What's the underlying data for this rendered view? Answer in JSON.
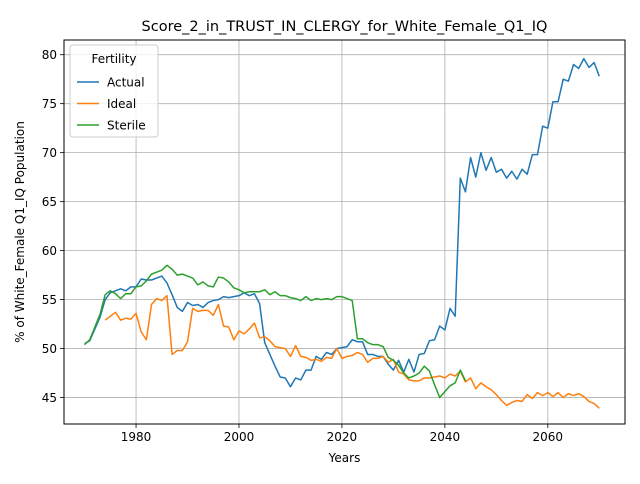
{
  "chart_data": {
    "type": "line",
    "title": "Score_2_in_TRUST_IN_CLERGY_for_White_Female_Q1_IQ",
    "xlabel": "Years",
    "ylabel": "% of White_Female Q1_IQ Population",
    "xlim": [
      1966,
      2075
    ],
    "ylim": [
      42.3,
      81.5
    ],
    "xticks": [
      1980,
      2000,
      2020,
      2040,
      2060
    ],
    "yticks": [
      45,
      50,
      55,
      60,
      65,
      70,
      75,
      80
    ],
    "grid": true,
    "legend": {
      "title": "Fertility",
      "placement": "top-left"
    },
    "series": [
      {
        "name": "Actual",
        "color": "#1f77b4",
        "x": [
          1970,
          1971,
          1972,
          1973,
          1974,
          1975,
          1976,
          1977,
          1978,
          1979,
          1980,
          1981,
          1982,
          1983,
          1984,
          1985,
          1986,
          1987,
          1988,
          1989,
          1990,
          1991,
          1992,
          1993,
          1994,
          1995,
          1996,
          1997,
          1998,
          1999,
          2000,
          2001,
          2002,
          2003,
          2004,
          2005,
          2006,
          2007,
          2008,
          2009,
          2010,
          2011,
          2012,
          2013,
          2014,
          2015,
          2016,
          2017,
          2018,
          2019,
          2020,
          2021,
          2022,
          2023,
          2024,
          2025,
          2026,
          2027,
          2028,
          2029,
          2030,
          2031,
          2032,
          2033,
          2034,
          2035,
          2036,
          2037,
          2038,
          2039,
          2040,
          2041,
          2042,
          2043,
          2044,
          2045,
          2046,
          2047,
          2048,
          2049,
          2050,
          2051,
          2052,
          2053,
          2054,
          2055,
          2056,
          2057,
          2058,
          2059,
          2060,
          2061,
          2062,
          2063,
          2064,
          2065,
          2066,
          2067,
          2068,
          2069,
          2070
        ],
        "y": [
          50.5,
          50.8,
          52.0,
          53.2,
          55.0,
          55.7,
          55.9,
          56.1,
          55.9,
          56.3,
          56.3,
          57.1,
          57.0,
          57.0,
          57.2,
          57.4,
          56.7,
          55.5,
          54.2,
          53.8,
          54.7,
          54.4,
          54.5,
          54.2,
          54.7,
          54.9,
          55.0,
          55.3,
          55.2,
          55.3,
          55.4,
          55.7,
          55.4,
          55.6,
          54.6,
          50.6,
          49.4,
          48.2,
          47.1,
          47.0,
          46.1,
          47.0,
          46.8,
          47.8,
          47.8,
          49.2,
          48.9,
          49.6,
          49.4,
          50.0,
          50.1,
          50.2,
          50.9,
          50.7,
          50.7,
          49.4,
          49.4,
          49.2,
          49.2,
          48.4,
          47.8,
          48.8,
          47.6,
          48.9,
          47.6,
          49.4,
          49.5,
          50.8,
          50.9,
          52.3,
          51.9,
          54.1,
          53.3,
          67.4,
          66.0,
          69.5,
          67.5,
          70.0,
          68.2,
          69.5,
          68.0,
          68.3,
          67.4,
          68.1,
          67.3,
          68.3,
          67.8,
          69.8,
          69.8,
          72.7,
          72.5,
          75.2,
          75.2,
          77.5,
          77.3,
          79.0,
          78.6,
          79.6,
          78.7,
          79.2,
          77.8
        ]
      },
      {
        "name": "Ideal",
        "color": "#ff7f0e",
        "x": [
          1974,
          1975,
          1976,
          1977,
          1978,
          1979,
          1980,
          1981,
          1982,
          1983,
          1984,
          1985,
          1986,
          1987,
          1988,
          1989,
          1990,
          1991,
          1992,
          1993,
          1994,
          1995,
          1996,
          1997,
          1998,
          1999,
          2000,
          2001,
          2002,
          2003,
          2004,
          2005,
          2006,
          2007,
          2008,
          2009,
          2010,
          2011,
          2012,
          2013,
          2014,
          2015,
          2016,
          2017,
          2018,
          2019,
          2020,
          2021,
          2022,
          2023,
          2024,
          2025,
          2026,
          2027,
          2028,
          2029,
          2030,
          2031,
          2032,
          2033,
          2034,
          2035,
          2036,
          2037,
          2038,
          2039,
          2040,
          2041,
          2042,
          2043,
          2044,
          2045,
          2046,
          2047,
          2048,
          2049,
          2050,
          2051,
          2052,
          2053,
          2054,
          2055,
          2056,
          2057,
          2058,
          2059,
          2060,
          2061,
          2062,
          2063,
          2064,
          2065,
          2066,
          2067,
          2068,
          2069,
          2070
        ],
        "y": [
          52.9,
          53.3,
          53.7,
          52.9,
          53.1,
          53.0,
          53.6,
          51.7,
          50.9,
          54.5,
          55.1,
          54.9,
          55.4,
          49.4,
          49.8,
          49.8,
          50.7,
          54.1,
          53.8,
          53.9,
          53.9,
          53.4,
          54.5,
          52.3,
          52.2,
          50.9,
          51.8,
          51.5,
          52.0,
          52.6,
          51.1,
          51.2,
          50.8,
          50.2,
          50.1,
          50.0,
          49.2,
          50.3,
          49.2,
          49.1,
          48.8,
          48.9,
          48.7,
          49.1,
          49.0,
          50.0,
          49.0,
          49.2,
          49.3,
          49.6,
          49.4,
          48.6,
          49.0,
          49.0,
          49.2,
          48.6,
          48.9,
          47.6,
          47.4,
          46.8,
          46.7,
          46.7,
          47.0,
          47.0,
          47.1,
          47.2,
          47.0,
          47.4,
          47.2,
          47.7,
          46.6,
          47.0,
          45.9,
          46.5,
          46.1,
          45.8,
          45.3,
          44.7,
          44.2,
          44.5,
          44.7,
          44.6,
          45.3,
          44.9,
          45.5,
          45.2,
          45.5,
          45.1,
          45.5,
          45.0,
          45.4,
          45.2,
          45.4,
          45.1,
          44.6,
          44.4,
          43.9
        ]
      },
      {
        "name": "Sterile",
        "color": "#2ca02c",
        "x": [
          1970,
          1971,
          1972,
          1973,
          1974,
          1975,
          1976,
          1977,
          1978,
          1979,
          1980,
          1981,
          1982,
          1983,
          1984,
          1985,
          1986,
          1987,
          1988,
          1989,
          1990,
          1991,
          1992,
          1993,
          1994,
          1995,
          1996,
          1997,
          1998,
          1999,
          2000,
          2001,
          2002,
          2003,
          2004,
          2005,
          2006,
          2007,
          2008,
          2009,
          2010,
          2011,
          2012,
          2013,
          2014,
          2015,
          2016,
          2017,
          2018,
          2019,
          2020,
          2021,
          2022,
          2023,
          2024,
          2025,
          2026,
          2027,
          2028,
          2029,
          2030,
          2031,
          2032,
          2033,
          2034,
          2035,
          2036,
          2037,
          2038,
          2039,
          2040,
          2041,
          2042,
          2043,
          2044
        ],
        "y": [
          50.4,
          50.9,
          52.2,
          53.5,
          55.5,
          55.9,
          55.6,
          55.1,
          55.6,
          55.6,
          56.3,
          56.4,
          56.9,
          57.6,
          57.8,
          58.0,
          58.5,
          58.1,
          57.5,
          57.6,
          57.4,
          57.2,
          56.5,
          56.8,
          56.4,
          56.3,
          57.3,
          57.2,
          56.8,
          56.2,
          56.0,
          55.7,
          55.8,
          55.8,
          55.8,
          56.0,
          55.5,
          55.8,
          55.4,
          55.4,
          55.2,
          55.1,
          54.9,
          55.3,
          54.9,
          55.1,
          55.0,
          55.1,
          55.0,
          55.3,
          55.3,
          55.1,
          54.9,
          51.0,
          51.0,
          50.6,
          50.4,
          50.4,
          50.2,
          49.1,
          48.8,
          48.3,
          47.5,
          47.0,
          47.2,
          47.5,
          48.2,
          47.7,
          46.3,
          45.0,
          45.6,
          46.2,
          46.5,
          47.8,
          46.7
        ]
      }
    ]
  }
}
